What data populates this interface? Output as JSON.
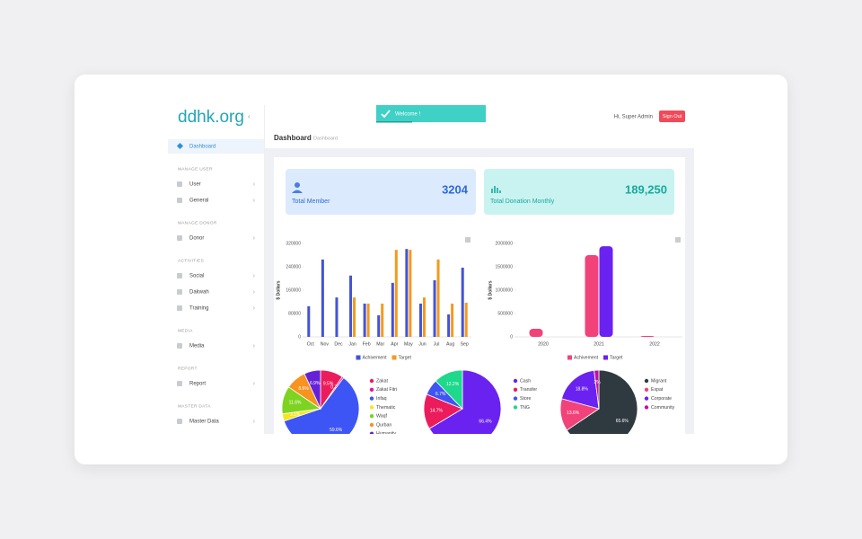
{
  "logo": "ddhk.org",
  "toast": "Welcome !",
  "user": "Hi, Super Admin",
  "sign_out": "Sign Out",
  "page_title": "Dashboard",
  "breadcrumb": "Dashboard",
  "sidebar": {
    "active": "Dashboard",
    "sections": [
      {
        "title": "MANAGE USER",
        "items": [
          "User",
          "General"
        ]
      },
      {
        "title": "MANAGE DONOR",
        "items": [
          "Donor"
        ]
      },
      {
        "title": "ACTIVITIES",
        "items": [
          "Social",
          "Dakwah",
          "Training"
        ]
      },
      {
        "title": "MEDIA",
        "items": [
          "Media"
        ]
      },
      {
        "title": "REPORT",
        "items": [
          "Report"
        ]
      },
      {
        "title": "MASTER DATA",
        "items": [
          "Master Data"
        ]
      }
    ]
  },
  "stats": [
    {
      "value": 3204,
      "label": "Total Member"
    },
    {
      "value": "189,250",
      "label": "Total Donation Monthly"
    }
  ],
  "chart_data": [
    {
      "type": "bar",
      "y_label": "$ Dollars",
      "categories": [
        "Oct",
        "Nov",
        "Dec",
        "Jan",
        "Feb",
        "Mar",
        "Apr",
        "May",
        "Jun",
        "Jul",
        "Aug",
        "Sep"
      ],
      "series": [
        {
          "name": "Achivement",
          "color": "#4353d6",
          "values": [
            105000,
            265000,
            135000,
            210000,
            114000,
            74000,
            185000,
            301000,
            114000,
            194000,
            77000,
            237000
          ]
        },
        {
          "name": "Target",
          "color": "#f39a1e",
          "values": [
            0,
            0,
            0,
            135000,
            114000,
            114000,
            298000,
            298000,
            135000,
            265000,
            114000,
            117000
          ]
        }
      ],
      "ylim": [
        0,
        320000
      ],
      "yticks": [
        0,
        80000,
        160000,
        240000,
        320000
      ]
    },
    {
      "type": "bar",
      "y_label": "$ Dollars",
      "categories": [
        "2020",
        "2021",
        "2022"
      ],
      "series": [
        {
          "name": "Achivement",
          "color": "#f2427a",
          "values": [
            173000,
            1750000,
            20000
          ]
        },
        {
          "name": "Target",
          "color": "#6a22f0",
          "values": [
            0,
            1940000,
            0
          ]
        }
      ],
      "ylim": [
        0,
        2000000
      ],
      "yticks": [
        0,
        500000,
        1000000,
        1500000,
        2000000
      ]
    },
    {
      "type": "pie",
      "categories": [
        "Zakat",
        "Zakat Fitri",
        "Infaq",
        "Thematic",
        "Waqf",
        "Qurban",
        "Humanity"
      ],
      "colors": [
        "#ec1c5c",
        "#e5179a",
        "#3d55f5",
        "#f5e61d",
        "#7ed321",
        "#f7931e",
        "#6521d8"
      ],
      "values": [
        9.5,
        0.7,
        59.6,
        3.1,
        11.6,
        8.6,
        6.9
      ],
      "value_labels": [
        "9.5%",
        "0.7%",
        "59.6%",
        "3.1%",
        "11.6%",
        "8.6%",
        "6.9%"
      ]
    },
    {
      "type": "pie",
      "categories": [
        "Cash",
        "Transfer",
        "Store",
        "TNG"
      ],
      "colors": [
        "#6a22f0",
        "#ec1c5c",
        "#3d55f5",
        "#1ed88c"
      ],
      "values": [
        66.4,
        14.7,
        6.7,
        12.2
      ],
      "value_labels": [
        "66.4%",
        "14.7%",
        "6.7%",
        "12.2%"
      ]
    },
    {
      "type": "pie",
      "categories": [
        "Migrant",
        "Expat",
        "Corporate",
        "Community"
      ],
      "colors": [
        "#2f3a40",
        "#f2427a",
        "#6a22f0",
        "#c4109e"
      ],
      "values": [
        65.6,
        13.6,
        18.8,
        2
      ],
      "value_labels": [
        "65.6%",
        "13.6%",
        "18.8%",
        "2%"
      ]
    }
  ]
}
